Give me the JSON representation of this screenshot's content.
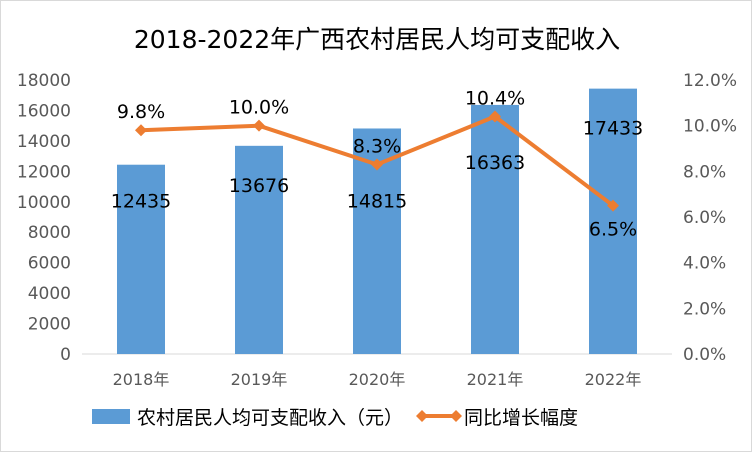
{
  "chart_data": {
    "type": "bar+line",
    "title": "2018-2022年广西农村居民人均可支配收入",
    "categories": [
      "2018年",
      "2019年",
      "2020年",
      "2021年",
      "2022年"
    ],
    "series": [
      {
        "name": "农村居民人均可支配收入（元）",
        "type": "bar",
        "axis": "left",
        "color": "#5b9bd5",
        "values": [
          12435,
          13676,
          14815,
          16363,
          17433
        ],
        "labels": [
          "12435",
          "13676",
          "14815",
          "16363",
          "17433"
        ]
      },
      {
        "name": "同比增长幅度",
        "type": "line",
        "axis": "right",
        "color": "#ed7d31",
        "values": [
          9.8,
          10.0,
          8.3,
          10.4,
          6.5
        ],
        "labels": [
          "9.8%",
          "10.0%",
          "8.3%",
          "10.4%",
          "6.5%"
        ]
      }
    ],
    "left_axis": {
      "ylim": [
        0,
        18000
      ],
      "ticks": [
        "0",
        "2000",
        "4000",
        "6000",
        "8000",
        "10000",
        "12000",
        "14000",
        "16000",
        "18000"
      ]
    },
    "right_axis": {
      "ylim": [
        0,
        12
      ],
      "ticks": [
        "0.0%",
        "2.0%",
        "4.0%",
        "6.0%",
        "8.0%",
        "10.0%",
        "12.0%"
      ]
    },
    "legend": "bottom",
    "grid": false
  }
}
